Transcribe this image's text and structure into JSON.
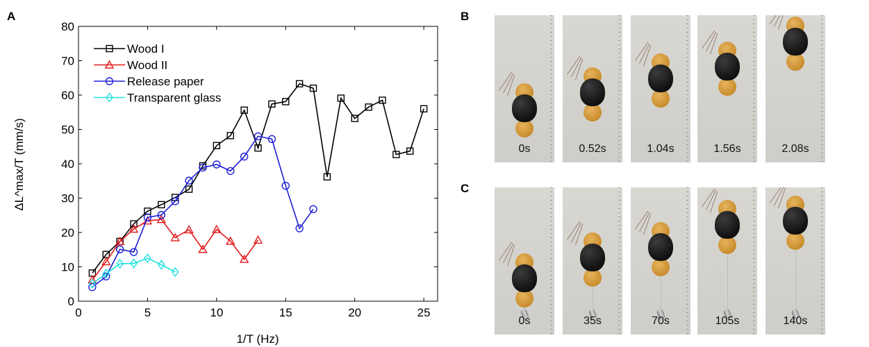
{
  "panels": {
    "a": "A",
    "b": "B",
    "c": "C"
  },
  "row_b_times": [
    "0s",
    "0.52s",
    "1.04s",
    "1.56s",
    "2.08s"
  ],
  "row_c_times": [
    "0s",
    "35s",
    "70s",
    "105s",
    "140s"
  ],
  "chart_data": {
    "type": "line",
    "xlabel": "1/T (Hz)",
    "ylabel": "ΔL^max/T (mm/s)",
    "xlim": [
      0,
      26
    ],
    "ylim": [
      0,
      80
    ],
    "xticks": [
      0,
      5,
      10,
      15,
      20,
      25
    ],
    "yticks": [
      0,
      10,
      20,
      30,
      40,
      50,
      60,
      70,
      80
    ],
    "legend_position": "top-left",
    "grid": false,
    "series": [
      {
        "name": "Wood I",
        "color": "#000000",
        "marker": "square",
        "x": [
          1,
          2,
          3,
          4,
          5,
          6,
          7,
          8,
          9,
          10,
          11,
          12,
          13,
          14,
          15,
          16,
          17,
          18,
          19,
          20,
          21,
          22,
          23,
          24,
          25
        ],
        "y": [
          8.2,
          13.6,
          17.4,
          22.5,
          26.2,
          28.1,
          30.2,
          32.6,
          39.4,
          45.3,
          48.2,
          55.6,
          44.6,
          57.4,
          58.1,
          63.3,
          62.0,
          36.2,
          59.1,
          53.2,
          56.5,
          58.5,
          42.7,
          43.7,
          56.0
        ]
      },
      {
        "name": "Wood II",
        "color": "#e31a1c",
        "marker": "triangle",
        "x": [
          1,
          2,
          3,
          4,
          5,
          6,
          7,
          8,
          9,
          10,
          11,
          12,
          13
        ],
        "y": [
          6.2,
          11.5,
          17.4,
          21.0,
          23.4,
          23.8,
          18.5,
          20.8,
          15.1,
          20.9,
          17.5,
          12.2,
          17.8
        ]
      },
      {
        "name": "Release paper",
        "color": "#1f1fd6",
        "marker": "circle",
        "x": [
          1,
          2,
          3,
          4,
          5,
          6,
          7,
          8,
          9,
          10,
          11,
          12,
          13,
          14,
          15,
          16,
          17
        ],
        "y": [
          4.1,
          7.2,
          15.1,
          14.3,
          24.4,
          25.1,
          29.1,
          35.1,
          38.9,
          39.8,
          37.9,
          42.1,
          48.0,
          47.2,
          33.6,
          21.2,
          26.8
        ]
      },
      {
        "name": "Transparent glass",
        "color": "#22e0e0",
        "marker": "diamond",
        "x": [
          1,
          2,
          3,
          4,
          5,
          6,
          7
        ],
        "y": [
          5.1,
          8.0,
          10.9,
          11.0,
          12.5,
          10.6,
          8.5
        ]
      }
    ]
  }
}
